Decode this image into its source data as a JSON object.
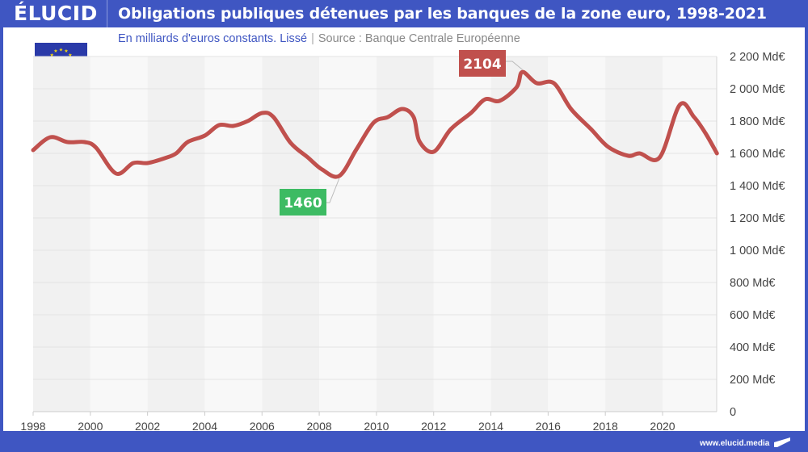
{
  "header": {
    "logo": "ÉLUCID",
    "title": "Obligations publiques détenues par les banques de la zone euro, 1998-2021"
  },
  "subtitle": {
    "unit_note": "En milliards d'euros constants. Lissé",
    "separator": "|",
    "source": "Source : Banque Centrale Européenne"
  },
  "footer": {
    "url": "www.elucid.media"
  },
  "flag": {
    "name": "EU flag",
    "stars": 12,
    "background": "#2a3aa8",
    "star_color": "#f5d90a"
  },
  "chart_data": {
    "type": "line",
    "title": "Obligations publiques détenues par les banques de la zone euro, 1998-2021",
    "subtitle": "En milliards d'euros constants. Lissé",
    "xlabel": "",
    "ylabel": "",
    "xlim": [
      1998,
      2021.9
    ],
    "ylim": [
      0,
      2200
    ],
    "grid": true,
    "y_axis_position": "right",
    "x_ticks": [
      "1998",
      "2000",
      "2002",
      "2004",
      "2006",
      "2008",
      "2010",
      "2012",
      "2014",
      "2016",
      "2018",
      "2020"
    ],
    "y_ticks": [
      "0",
      "200 Md€",
      "400 Md€",
      "600 Md€",
      "800 Md€",
      "1 000 Md€",
      "1 200 Md€",
      "1 400 Md€",
      "1 600 Md€",
      "1 800 Md€",
      "2 000 Md€",
      "2 200 Md€"
    ],
    "series": [
      {
        "name": "Obligations publiques détenues",
        "color": "#c0504d",
        "x": [
          1998.0,
          1998.6,
          1999.2,
          1999.8,
          2000.2,
          2000.9,
          2001.5,
          2002.0,
          2002.6,
          2003.0,
          2003.4,
          2004.0,
          2004.5,
          2005.0,
          2005.5,
          2006.0,
          2006.4,
          2007.0,
          2007.6,
          2008.1,
          2008.7,
          2009.3,
          2009.9,
          2010.4,
          2010.9,
          2011.3,
          2011.5,
          2012.0,
          2012.6,
          2013.3,
          2013.8,
          2014.3,
          2014.9,
          2015.1,
          2015.6,
          2016.2,
          2016.8,
          2017.5,
          2018.1,
          2018.8,
          2019.2,
          2019.9,
          2020.6,
          2021.1,
          2021.5,
          2021.9
        ],
        "y": [
          1620,
          1700,
          1670,
          1670,
          1635,
          1475,
          1540,
          1540,
          1570,
          1600,
          1670,
          1710,
          1775,
          1770,
          1800,
          1850,
          1825,
          1665,
          1575,
          1500,
          1460,
          1625,
          1790,
          1825,
          1875,
          1825,
          1675,
          1610,
          1750,
          1850,
          1935,
          1925,
          2010,
          2104,
          2035,
          2035,
          1875,
          1750,
          1640,
          1585,
          1600,
          1575,
          1900,
          1825,
          1725,
          1600
        ]
      }
    ],
    "annotations": [
      {
        "label": "2104",
        "x": 2015.1,
        "y": 2104,
        "color": "#c0504d",
        "kind": "max"
      },
      {
        "label": "1460",
        "x": 2008.7,
        "y": 1460,
        "color": "#3dbb63",
        "kind": "min"
      }
    ],
    "band_colors": [
      "#f1f1f1",
      "#f8f8f8"
    ],
    "grid_color": "#e3e3e3"
  }
}
